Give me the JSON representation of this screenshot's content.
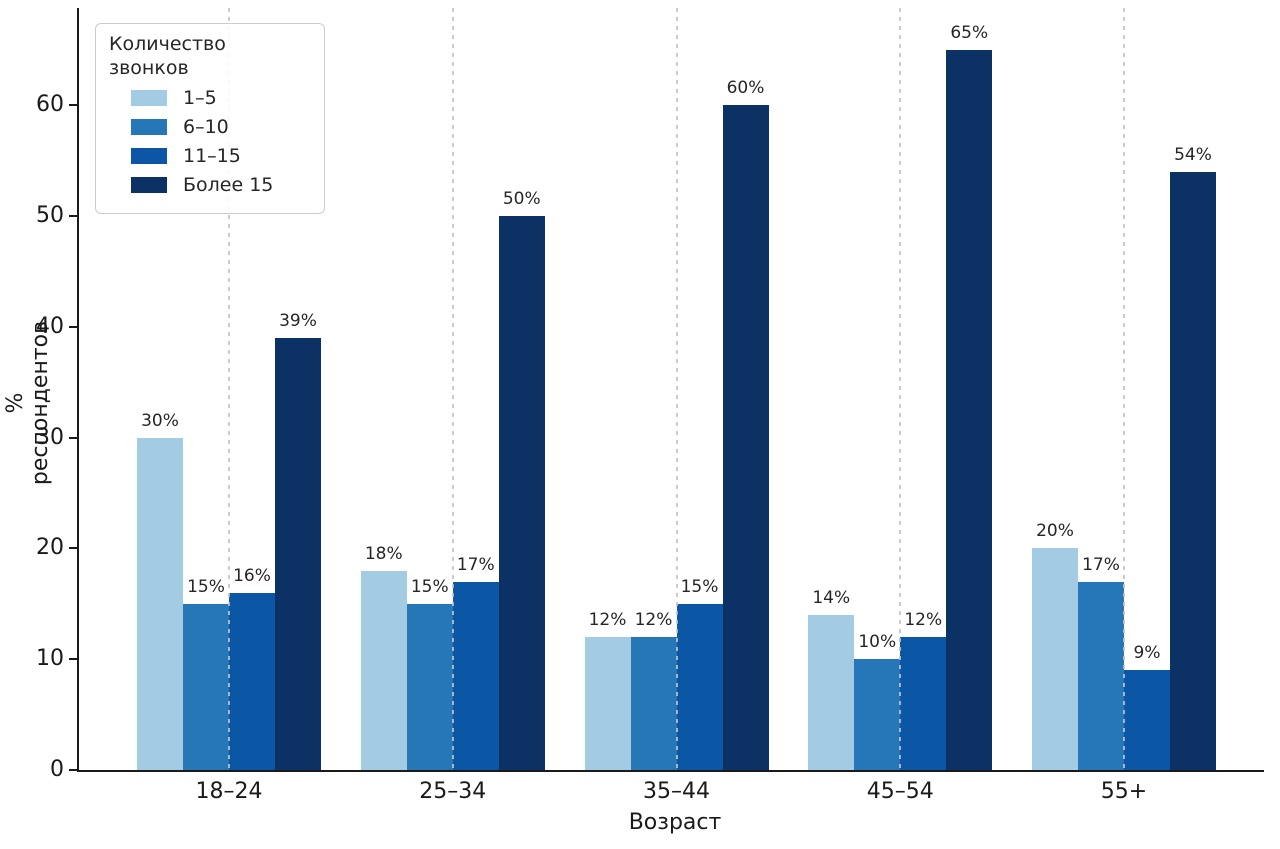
{
  "chart_data": {
    "type": "bar",
    "title": "",
    "xlabel": "Возраст",
    "ylabel": "% респондентов",
    "legend_title": "Количество звонков",
    "legend_position": "upper-left",
    "grid": "vertical-dashed",
    "categories": [
      "18–24",
      "25–34",
      "35–44",
      "45–54",
      "55+"
    ],
    "series": [
      {
        "name": "1–5",
        "color": "#A3CBE3",
        "values": [
          30,
          18,
          12,
          14,
          20
        ]
      },
      {
        "name": "6–10",
        "color": "#2677B8",
        "values": [
          15,
          15,
          12,
          10,
          17
        ]
      },
      {
        "name": "11–15",
        "color": "#0B57A6",
        "values": [
          16,
          17,
          15,
          12,
          9
        ]
      },
      {
        "name": "Более 15",
        "color": "#0C3164",
        "values": [
          39,
          50,
          60,
          65,
          54
        ]
      }
    ],
    "bar_labels": [
      "30%",
      "15%",
      "16%",
      "39%",
      "18%",
      "15%",
      "17%",
      "50%",
      "12%",
      "12%",
      "15%",
      "60%",
      "14%",
      "10%",
      "12%",
      "65%",
      "20%",
      "17%",
      "9%",
      "54%"
    ],
    "y_ticks": [
      "0",
      "10",
      "20",
      "30",
      "40",
      "50",
      "60"
    ],
    "ylim": [
      0,
      68.8
    ],
    "legend_on": true
  },
  "colors": {
    "background": "#ffffff",
    "spine": "#1a1a1a",
    "text": "#262626",
    "grid": "#c8c8c8",
    "legend_border": "#cccccc"
  }
}
